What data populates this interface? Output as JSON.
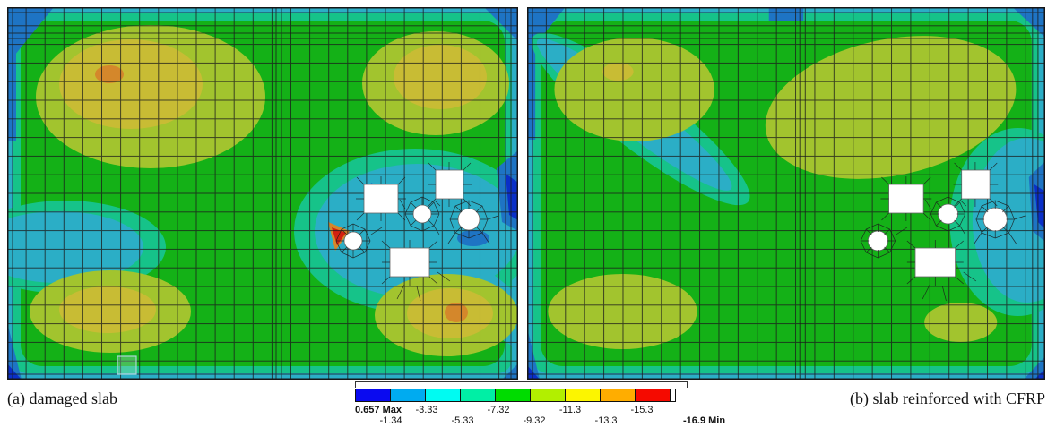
{
  "figure": {
    "type": "fea-contour-comparison",
    "plots": [
      {
        "id": "a",
        "caption": "(a) damaged slab"
      },
      {
        "id": "b",
        "caption": "(b) slab reinforced with CFRP"
      }
    ]
  },
  "legend": {
    "colors": [
      "#0A0AF0",
      "#00ABF0",
      "#00FBF2",
      "#00EFA5",
      "#00DC00",
      "#B2EF00",
      "#FCF500",
      "#FFAD00",
      "#F50A00"
    ],
    "ticks": [
      {
        "label": "0.657 Max",
        "boundary": 0,
        "row": "top",
        "bold": true
      },
      {
        "label": "-1.34",
        "boundary": 1,
        "row": "bottom",
        "bold": false
      },
      {
        "label": "-3.33",
        "boundary": 2,
        "row": "top",
        "bold": false
      },
      {
        "label": "-5.33",
        "boundary": 3,
        "row": "bottom",
        "bold": false
      },
      {
        "label": "-7.32",
        "boundary": 4,
        "row": "top",
        "bold": false
      },
      {
        "label": "-9.32",
        "boundary": 5,
        "row": "bottom",
        "bold": false
      },
      {
        "label": "-11.3",
        "boundary": 6,
        "row": "top",
        "bold": false
      },
      {
        "label": "-13.3",
        "boundary": 7,
        "row": "bottom",
        "bold": false
      },
      {
        "label": "-15.3",
        "boundary": 8,
        "row": "top",
        "bold": false
      },
      {
        "label": "-16.9 Min",
        "boundary": 9,
        "row": "bottom",
        "bold": true
      }
    ],
    "value_max": 0.657,
    "value_min": -16.9
  },
  "palette": {
    "blue_dark": "#0A2FC8",
    "blue": "#1E74C4",
    "cyan": "#2BAEC6",
    "seagreen": "#16C389",
    "green": "#14B117",
    "olive": "#A2C42E",
    "yellow": "#C8BC34",
    "orange": "#D4872B",
    "red": "#D42111",
    "mesh": "#1B1B1B"
  }
}
